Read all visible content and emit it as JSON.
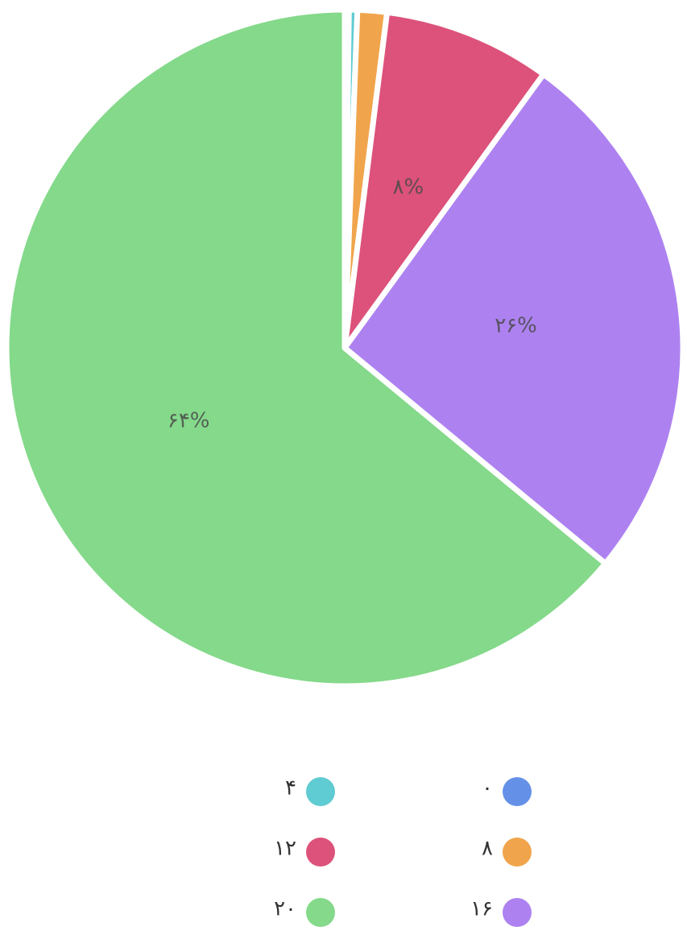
{
  "chart_data": {
    "type": "pie",
    "categories": [
      "۰",
      "۴",
      "۸",
      "۱۲",
      "۱۶",
      "۲۰"
    ],
    "values": [
      0.2,
      0.4,
      1.4,
      8,
      26,
      64
    ],
    "value_labels": [
      null,
      null,
      null,
      "۸%",
      "۲۶%",
      "۶۴%"
    ],
    "colors": [
      "#6490e8",
      "#5fcbd2",
      "#f0a54c",
      "#dc527a",
      "#ad82f0",
      "#84d98a"
    ],
    "legend": "bottom"
  }
}
